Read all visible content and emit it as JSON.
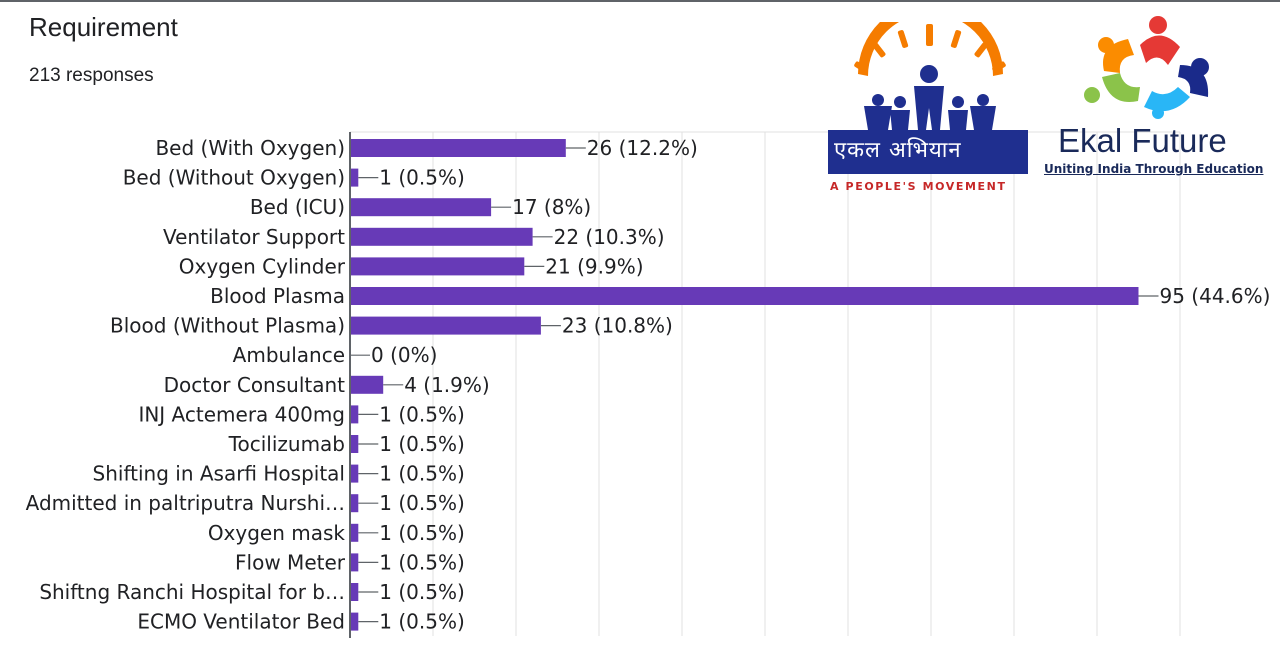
{
  "header": {
    "title": "Requirement",
    "responses": "213 responses"
  },
  "logos": {
    "ekal_abhiyan": {
      "hindi_text": "एकल अभियान",
      "tagline": "A PEOPLE'S MOVEMENT"
    },
    "ekal_future": {
      "name": "Ekal Future",
      "tagline": "Uniting India Through Education"
    }
  },
  "colors": {
    "bar": "#673ab7",
    "grid": "#e0e0e0",
    "axis": "#5f6368",
    "logo_navy": "#1f2f8f",
    "logo_orange": "#f57c00",
    "logo_red": "#c62828"
  },
  "chart_data": {
    "type": "bar",
    "orientation": "horizontal",
    "title": "Requirement",
    "total_responses": 213,
    "categories": [
      "Bed (With Oxygen)",
      "Bed (Without Oxygen)",
      "Bed (ICU)",
      "Ventilator Support",
      "Oxygen Cylinder",
      "Blood Plasma",
      "Blood (Without Plasma)",
      "Ambulance",
      "Doctor Consultant",
      "INJ Actemera 400mg",
      "Tocilizumab",
      "Shifting in Asarfi Hospital",
      "Admitted in paltriputra Nurshi…",
      "Oxygen mask",
      "Flow Meter",
      "Shiftng Ranchi Hospital for b…",
      "ECMO Ventilator Bed"
    ],
    "values": [
      26,
      1,
      17,
      22,
      21,
      95,
      23,
      0,
      4,
      1,
      1,
      1,
      1,
      1,
      1,
      1,
      1
    ],
    "value_labels": [
      "26 (12.2%)",
      "1 (0.5%)",
      "17 (8%)",
      "22 (10.3%)",
      "21 (9.9%)",
      "95 (44.6%)",
      "23 (10.8%)",
      "0 (0%)",
      "4 (1.9%)",
      "1 (0.5%)",
      "1 (0.5%)",
      "1 (0.5%)",
      "1 (0.5%)",
      "1 (0.5%)",
      "1 (0.5%)",
      "1 (0.5%)",
      "1 (0.5%)"
    ],
    "xlim": [
      0,
      100
    ],
    "grid": true,
    "legend": "none"
  }
}
